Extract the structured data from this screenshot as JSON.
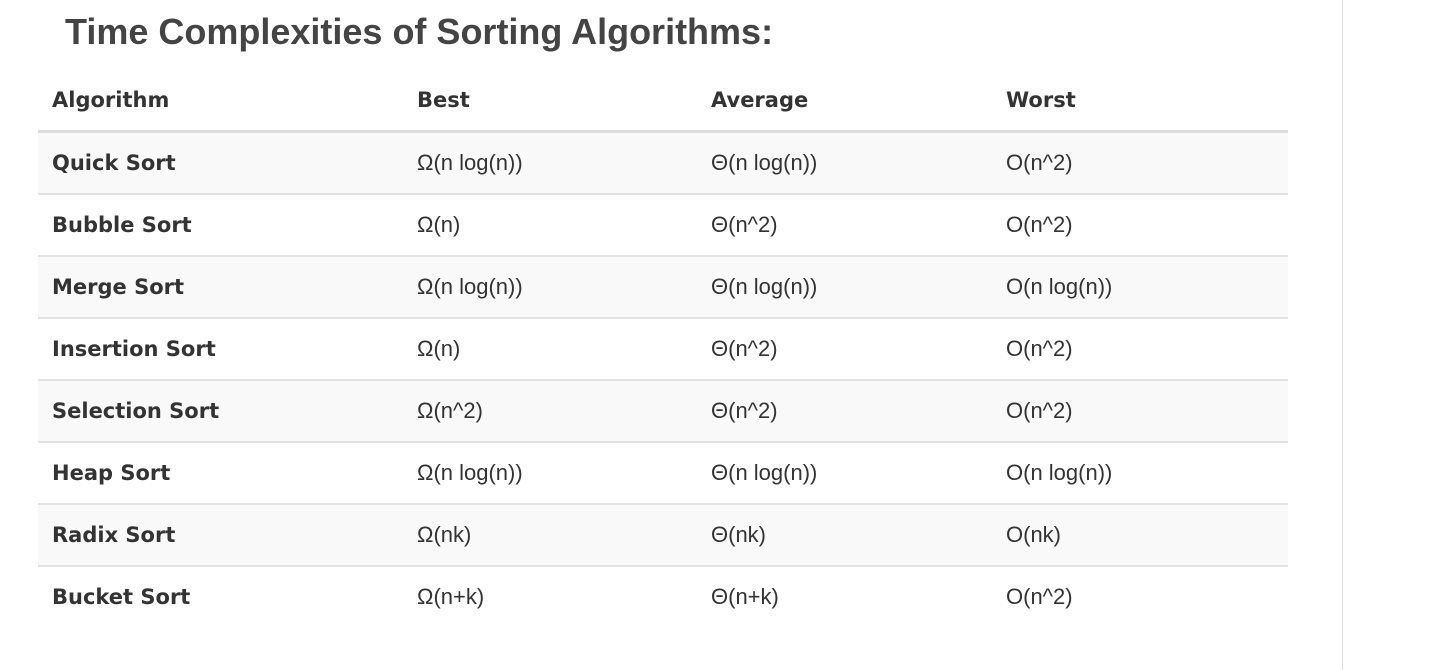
{
  "page": {
    "title": "Time Complexities of Sorting Algorithms:"
  },
  "table": {
    "headers": {
      "algorithm": "Algorithm",
      "best": "Best",
      "average": "Average",
      "worst": "Worst"
    },
    "rows": [
      {
        "algorithm": "Quick Sort",
        "best": "Ω(n log(n))",
        "average": "Θ(n log(n))",
        "worst": "O(n^2)"
      },
      {
        "algorithm": "Bubble Sort",
        "best": "Ω(n)",
        "average": "Θ(n^2)",
        "worst": "O(n^2)"
      },
      {
        "algorithm": "Merge Sort",
        "best": "Ω(n log(n))",
        "average": "Θ(n log(n))",
        "worst": "O(n log(n))"
      },
      {
        "algorithm": "Insertion Sort",
        "best": "Ω(n)",
        "average": "Θ(n^2)",
        "worst": "O(n^2)"
      },
      {
        "algorithm": "Selection Sort",
        "best": "Ω(n^2)",
        "average": "Θ(n^2)",
        "worst": "O(n^2)"
      },
      {
        "algorithm": "Heap Sort",
        "best": "Ω(n log(n))",
        "average": "Θ(n log(n))",
        "worst": "O(n log(n))"
      },
      {
        "algorithm": "Radix Sort",
        "best": "Ω(nk)",
        "average": "Θ(nk)",
        "worst": "O(nk)"
      },
      {
        "algorithm": "Bucket Sort",
        "best": "Ω(n+k)",
        "average": "Θ(n+k)",
        "worst": "O(n^2)"
      }
    ]
  },
  "colors": {
    "title": "#444444",
    "text": "#333333",
    "row_stripe": "#f9f9f9",
    "border": "#dddddd"
  }
}
